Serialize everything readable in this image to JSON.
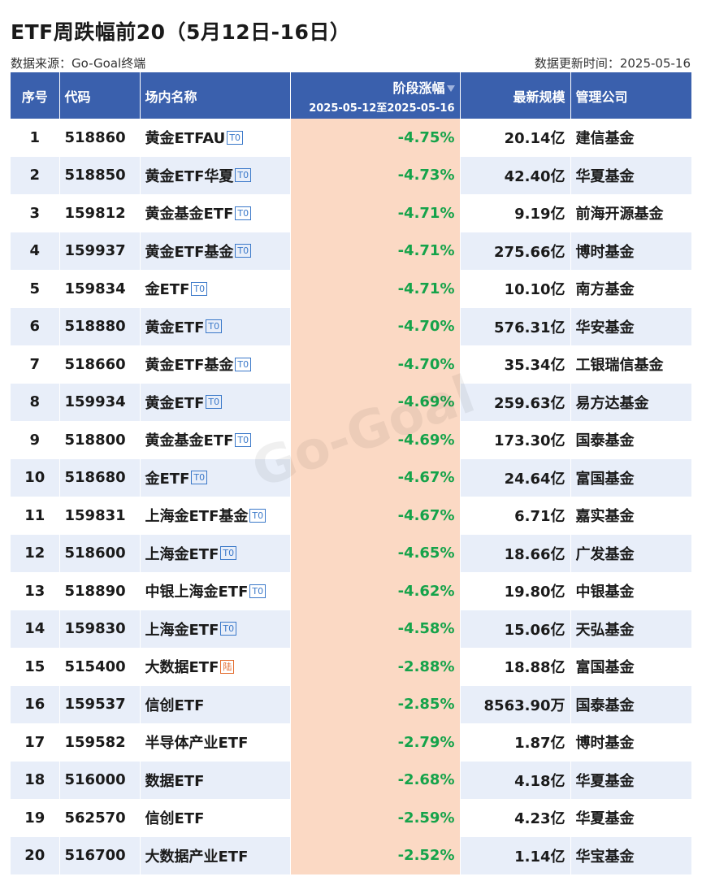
{
  "title": "ETF周跌幅前20（5月12日-16日）",
  "source": "数据来源：Go-Goal终端",
  "updated": "数据更新时间：2025-05-16",
  "watermark": "Go-Goal",
  "columns": {
    "rank": "序号",
    "code": "代码",
    "name": "场内名称",
    "change": "阶段涨幅",
    "period": "2025-05-12至2025-05-16",
    "scale": "最新规模",
    "company": "管理公司"
  },
  "colors": {
    "header": "#3a60ad",
    "row_alt": "#e8eef9",
    "change_bg": "#fbd9c4",
    "change_text": "#15a34a"
  },
  "rows": [
    {
      "rank": "1",
      "code": "518860",
      "name": "黄金ETFAU",
      "badge": "T0",
      "change": "-4.75%",
      "scale": "20.14亿",
      "company": "建信基金"
    },
    {
      "rank": "2",
      "code": "518850",
      "name": "黄金ETF华夏",
      "badge": "T0",
      "change": "-4.73%",
      "scale": "42.40亿",
      "company": "华夏基金"
    },
    {
      "rank": "3",
      "code": "159812",
      "name": "黄金基金ETF",
      "badge": "T0",
      "change": "-4.71%",
      "scale": "9.19亿",
      "company": "前海开源基金"
    },
    {
      "rank": "4",
      "code": "159937",
      "name": "黄金ETF基金",
      "badge": "T0",
      "change": "-4.71%",
      "scale": "275.66亿",
      "company": "博时基金"
    },
    {
      "rank": "5",
      "code": "159834",
      "name": "金ETF",
      "badge": "T0",
      "change": "-4.71%",
      "scale": "10.10亿",
      "company": "南方基金"
    },
    {
      "rank": "6",
      "code": "518880",
      "name": "黄金ETF",
      "badge": "T0",
      "change": "-4.70%",
      "scale": "576.31亿",
      "company": "华安基金"
    },
    {
      "rank": "7",
      "code": "518660",
      "name": "黄金ETF基金",
      "badge": "T0",
      "change": "-4.70%",
      "scale": "35.34亿",
      "company": "工银瑞信基金"
    },
    {
      "rank": "8",
      "code": "159934",
      "name": "黄金ETF",
      "badge": "T0",
      "change": "-4.69%",
      "scale": "259.63亿",
      "company": "易方达基金"
    },
    {
      "rank": "9",
      "code": "518800",
      "name": "黄金基金ETF",
      "badge": "T0",
      "change": "-4.69%",
      "scale": "173.30亿",
      "company": "国泰基金"
    },
    {
      "rank": "10",
      "code": "518680",
      "name": "金ETF",
      "badge": "T0",
      "change": "-4.67%",
      "scale": "24.64亿",
      "company": "富国基金"
    },
    {
      "rank": "11",
      "code": "159831",
      "name": "上海金ETF基金",
      "badge": "T0",
      "change": "-4.67%",
      "scale": "6.71亿",
      "company": "嘉实基金"
    },
    {
      "rank": "12",
      "code": "518600",
      "name": "上海金ETF",
      "badge": "T0",
      "change": "-4.65%",
      "scale": "18.66亿",
      "company": "广发基金"
    },
    {
      "rank": "13",
      "code": "518890",
      "name": "中银上海金ETF",
      "badge": "T0",
      "change": "-4.62%",
      "scale": "19.80亿",
      "company": "中银基金"
    },
    {
      "rank": "14",
      "code": "159830",
      "name": "上海金ETF",
      "badge": "T0",
      "change": "-4.58%",
      "scale": "15.06亿",
      "company": "天弘基金"
    },
    {
      "rank": "15",
      "code": "515400",
      "name": "大数据ETF",
      "badge": "陆",
      "change": "-2.88%",
      "scale": "18.88亿",
      "company": "富国基金"
    },
    {
      "rank": "16",
      "code": "159537",
      "name": "信创ETF",
      "badge": "",
      "change": "-2.85%",
      "scale": "8563.90万",
      "company": "国泰基金"
    },
    {
      "rank": "17",
      "code": "159582",
      "name": "半导体产业ETF",
      "badge": "",
      "change": "-2.79%",
      "scale": "1.87亿",
      "company": "博时基金"
    },
    {
      "rank": "18",
      "code": "516000",
      "name": "数据ETF",
      "badge": "",
      "change": "-2.68%",
      "scale": "4.18亿",
      "company": "华夏基金"
    },
    {
      "rank": "19",
      "code": "562570",
      "name": "信创ETF",
      "badge": "",
      "change": "-2.59%",
      "scale": "4.23亿",
      "company": "华夏基金"
    },
    {
      "rank": "20",
      "code": "516700",
      "name": "大数据产业ETF",
      "badge": "",
      "change": "-2.52%",
      "scale": "1.14亿",
      "company": "华宝基金"
    }
  ]
}
